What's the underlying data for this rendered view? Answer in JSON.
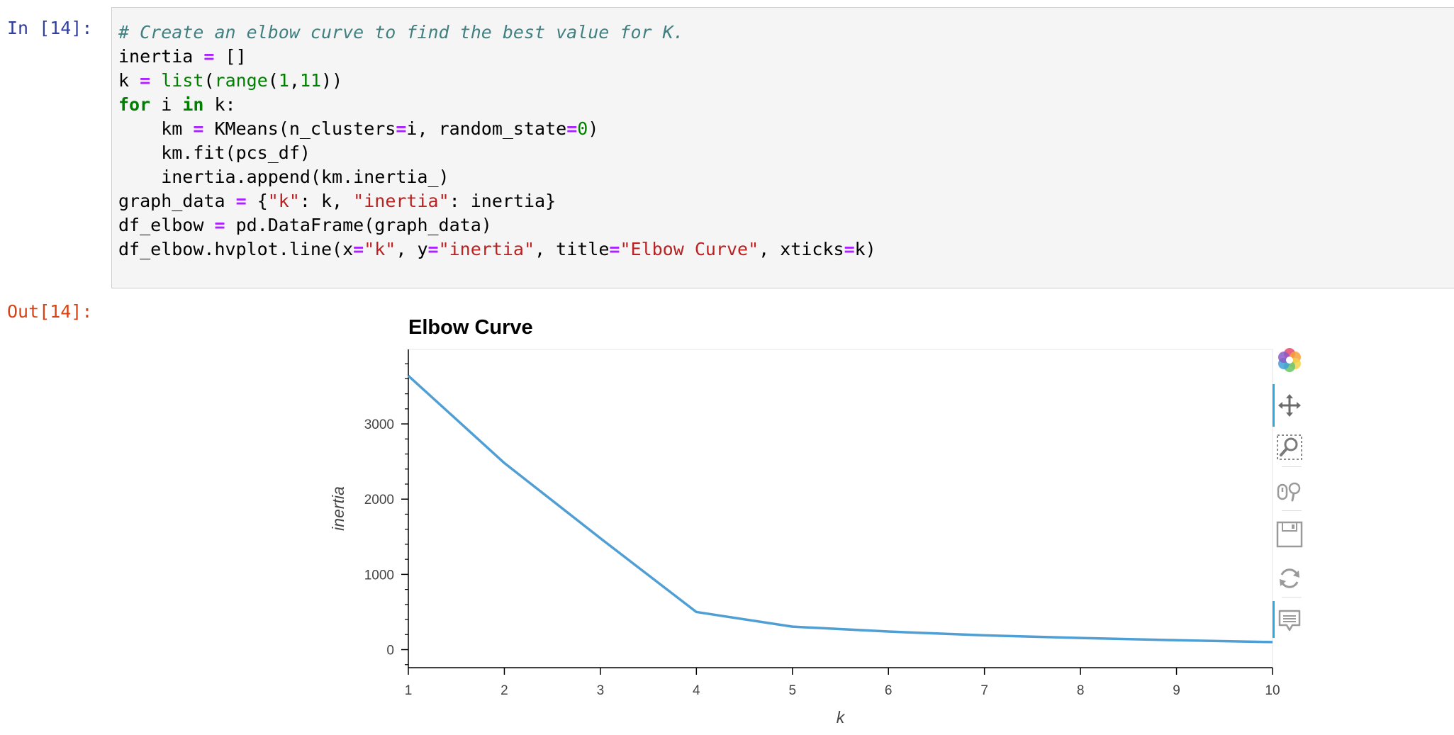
{
  "cell": {
    "in_prompt": "In [14]:",
    "out_prompt": "Out[14]:",
    "code_lines": [
      [
        {
          "t": "# Create an elbow curve to find the best value for K.",
          "c": "cm"
        }
      ],
      [
        {
          "t": "inertia "
        },
        {
          "t": "=",
          "c": "op"
        },
        {
          "t": " []"
        }
      ],
      [
        {
          "t": "k "
        },
        {
          "t": "=",
          "c": "op"
        },
        {
          "t": " "
        },
        {
          "t": "list",
          "c": "bi"
        },
        {
          "t": "("
        },
        {
          "t": "range",
          "c": "bi"
        },
        {
          "t": "("
        },
        {
          "t": "1",
          "c": "num"
        },
        {
          "t": ","
        },
        {
          "t": "11",
          "c": "num"
        },
        {
          "t": "))"
        }
      ],
      [
        {
          "t": "for",
          "c": "kw"
        },
        {
          "t": " i "
        },
        {
          "t": "in",
          "c": "kw"
        },
        {
          "t": " k:"
        }
      ],
      [
        {
          "t": "    km "
        },
        {
          "t": "=",
          "c": "op"
        },
        {
          "t": " KMeans(n_clusters"
        },
        {
          "t": "=",
          "c": "op"
        },
        {
          "t": "i, random_state"
        },
        {
          "t": "=",
          "c": "op"
        },
        {
          "t": "0",
          "c": "num"
        },
        {
          "t": ")"
        }
      ],
      [
        {
          "t": "    km.fit(pcs_df)"
        }
      ],
      [
        {
          "t": "    inertia.append(km.inertia_)"
        }
      ],
      [
        {
          "t": "graph_data "
        },
        {
          "t": "=",
          "c": "op"
        },
        {
          "t": " {"
        },
        {
          "t": "\"k\"",
          "c": "str"
        },
        {
          "t": ": k, "
        },
        {
          "t": "\"inertia\"",
          "c": "str"
        },
        {
          "t": ": inertia}"
        }
      ],
      [
        {
          "t": "df_elbow "
        },
        {
          "t": "=",
          "c": "op"
        },
        {
          "t": " pd.DataFrame(graph_data)"
        }
      ],
      [
        {
          "t": "df_elbow.hvplot.line(x"
        },
        {
          "t": "=",
          "c": "op"
        },
        {
          "t": "\"k\"",
          "c": "str"
        },
        {
          "t": ", y"
        },
        {
          "t": "=",
          "c": "op"
        },
        {
          "t": "\"inertia\"",
          "c": "str"
        },
        {
          "t": ", title"
        },
        {
          "t": "=",
          "c": "op"
        },
        {
          "t": "\"Elbow Curve\"",
          "c": "str"
        },
        {
          "t": ", xticks"
        },
        {
          "t": "=",
          "c": "op"
        },
        {
          "t": "k)"
        }
      ]
    ]
  },
  "chart_data": {
    "type": "line",
    "title": "Elbow Curve",
    "xlabel": "k",
    "ylabel": "inertia",
    "x": [
      1,
      2,
      3,
      4,
      5,
      6,
      7,
      8,
      9,
      10
    ],
    "y": [
      3640,
      2480,
      1480,
      500,
      305,
      240,
      190,
      155,
      125,
      100
    ],
    "xlim": [
      1,
      10
    ],
    "ylim": [
      -240,
      3990
    ],
    "xticks": [
      1,
      2,
      3,
      4,
      5,
      6,
      7,
      8,
      9,
      10
    ],
    "yticks": [
      0,
      1000,
      2000,
      3000
    ],
    "line_color": "#4f9fd5",
    "grid": false
  },
  "toolbar": {
    "tools": [
      "bokeh-logo-icon",
      "pan-icon",
      "box-zoom-icon",
      "wheel-zoom-icon",
      "save-icon",
      "reset-icon",
      "hover-icon"
    ],
    "active_color": "#26aae1"
  }
}
